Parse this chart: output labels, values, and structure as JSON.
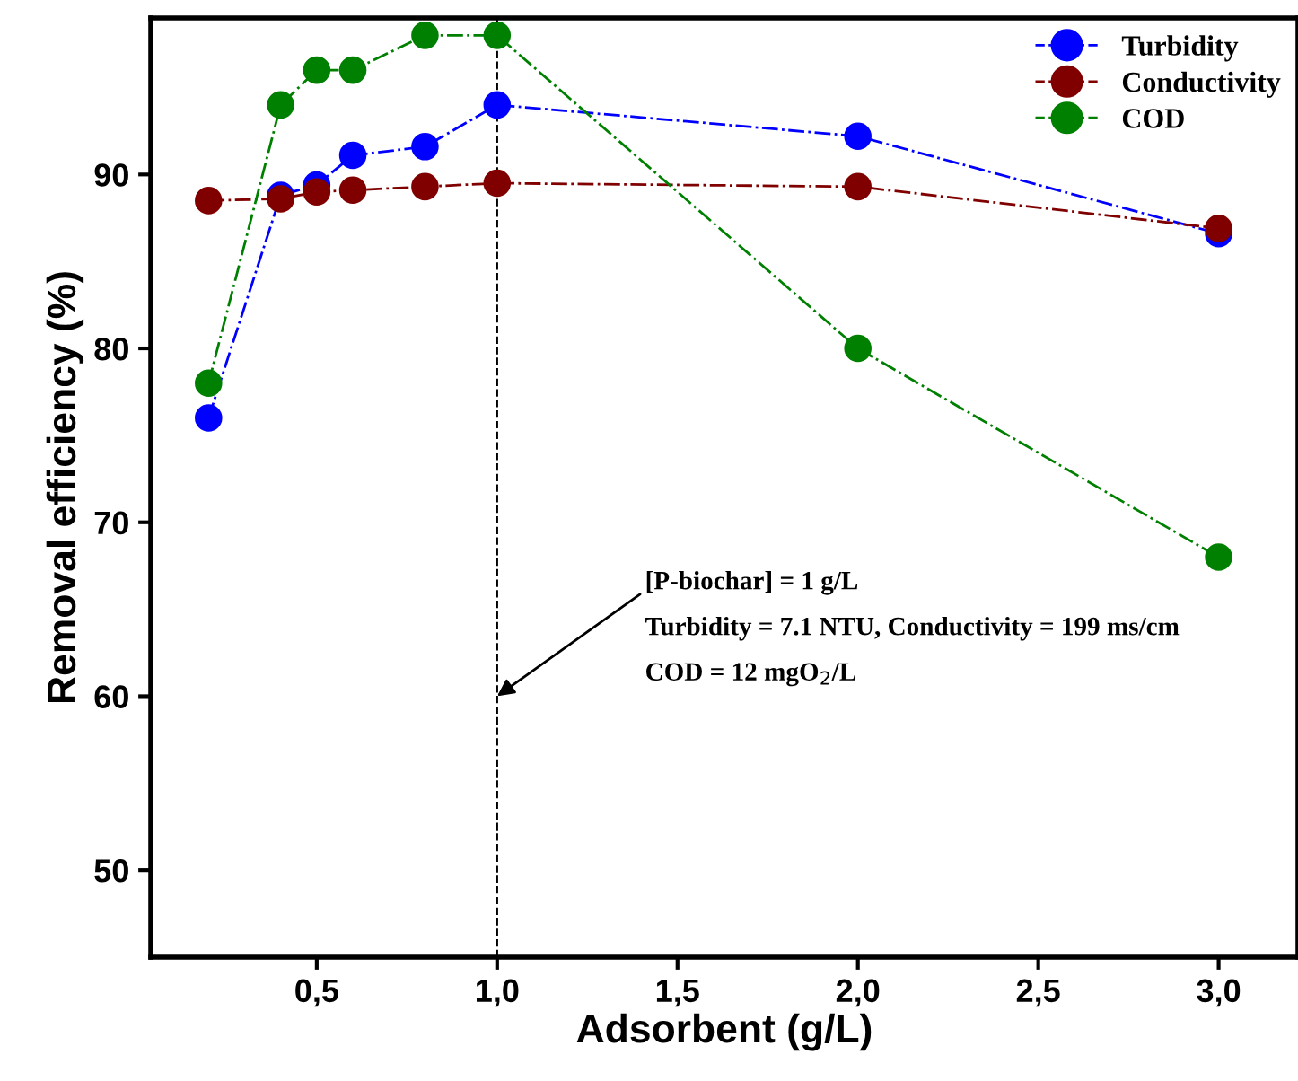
{
  "chart_data": {
    "type": "line",
    "xlabel": "Adsorbent (g/L)",
    "ylabel": "Removal efficiency (%)",
    "x": [
      0.2,
      0.4,
      0.5,
      0.6,
      0.8,
      1.0,
      2.0,
      3.0
    ],
    "series": [
      {
        "name": "Turbidity",
        "color": "#0000ff",
        "values": [
          76,
          88.8,
          89.4,
          91.1,
          91.6,
          94,
          92.2,
          86.6
        ]
      },
      {
        "name": "Conductivity",
        "color": "#800000",
        "values": [
          88.5,
          88.6,
          89.0,
          89.1,
          89.3,
          89.5,
          89.3,
          86.9
        ]
      },
      {
        "name": "COD",
        "color": "#008000",
        "values": [
          78,
          94,
          96,
          96,
          98,
          98,
          80,
          68
        ]
      }
    ],
    "xlim": [
      0.04,
      3.22
    ],
    "xticks": [
      {
        "value": 0.5,
        "label": "0,5"
      },
      {
        "value": 1.0,
        "label": "1,0"
      },
      {
        "value": 1.5,
        "label": "1,5"
      },
      {
        "value": 2.0,
        "label": "2,0"
      },
      {
        "value": 2.5,
        "label": "2,5"
      },
      {
        "value": 3.0,
        "label": "3,0"
      }
    ],
    "ylim": [
      45,
      99
    ],
    "yticks": [
      50,
      60,
      70,
      80,
      90
    ],
    "ref_lines": [
      {
        "axis": "x",
        "value": 1.0,
        "color": "#000000",
        "line_style": "dashed"
      }
    ],
    "annotations": [
      {
        "text": "[P-biochar] = 1 g/L\nTurbidity = 7.1 NTU, Conductivity = 199 ms/cm\nCOD = 12 mgO$_{2}$/L",
        "x": 1.0,
        "y": 60
      }
    ],
    "marker": "circle",
    "line_style": "dashdot",
    "legend": "top right",
    "grid": false
  }
}
